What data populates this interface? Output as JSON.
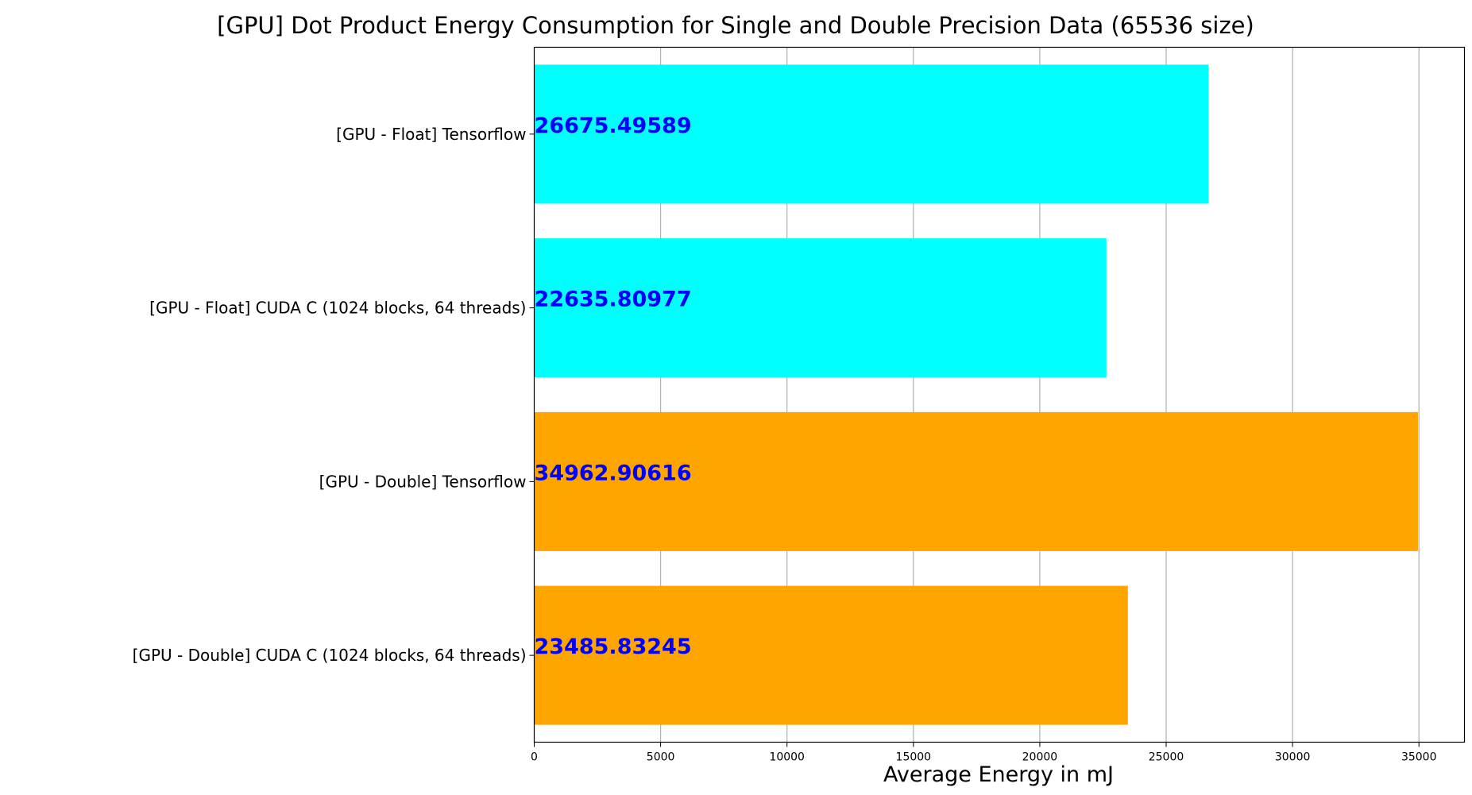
{
  "chart_data": {
    "type": "bar",
    "orientation": "horizontal",
    "title": "[GPU] Dot Product Energy Consumption for Single and Double Precision Data (65536 size)",
    "xlabel": "Average Energy in mJ",
    "ylabel": "",
    "xlim": [
      0,
      36800
    ],
    "xticks": [
      0,
      5000,
      10000,
      15000,
      20000,
      25000,
      30000,
      35000
    ],
    "grid": "vertical",
    "categories": [
      "[GPU - Float] Tensorflow",
      "[GPU - Float] CUDA C (1024 blocks, 64 threads)",
      "[GPU - Double] Tensorflow",
      "[GPU - Double] CUDA C (1024 blocks, 64 threads)"
    ],
    "values": [
      26675.49589,
      22635.80977,
      34962.90616,
      23485.83245
    ],
    "value_labels": [
      "26675.49589",
      "22635.80977",
      "34962.90616",
      "23485.83245"
    ],
    "bar_colors": [
      "#00ffff",
      "#00ffff",
      "#ffa500",
      "#ffa500"
    ],
    "label_color": "#0000ff"
  }
}
